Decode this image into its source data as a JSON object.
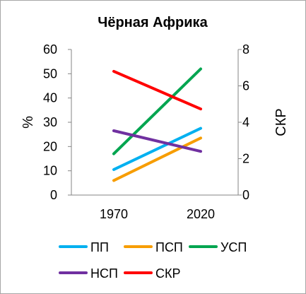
{
  "chart_data": {
    "type": "line",
    "title": "Чёрная Африка",
    "categories": [
      "1970",
      "2020"
    ],
    "ylabel_left": "%",
    "ylabel_right": "СКР",
    "ylim_left": [
      0,
      60
    ],
    "ylim_right": [
      0,
      8
    ],
    "yticks_left": [
      "0",
      "10",
      "20",
      "30",
      "40",
      "50",
      "60"
    ],
    "yticks_right": [
      "0",
      "2",
      "4",
      "6",
      "8"
    ],
    "grid": false,
    "legend_position": "bottom",
    "series": [
      {
        "name": "ПП",
        "axis": "left",
        "color": "#00b0f0",
        "values": [
          10.5,
          27.5
        ]
      },
      {
        "name": "ПСП",
        "axis": "left",
        "color": "#f79d00",
        "values": [
          6,
          23.5
        ]
      },
      {
        "name": "УСП",
        "axis": "left",
        "color": "#00a550",
        "values": [
          17,
          52
        ]
      },
      {
        "name": "НСП",
        "axis": "left",
        "color": "#7030a0",
        "values": [
          26.5,
          18
        ]
      },
      {
        "name": "СКР",
        "axis": "right",
        "color": "#ff0000",
        "values": [
          6.8,
          4.73
        ]
      }
    ]
  }
}
